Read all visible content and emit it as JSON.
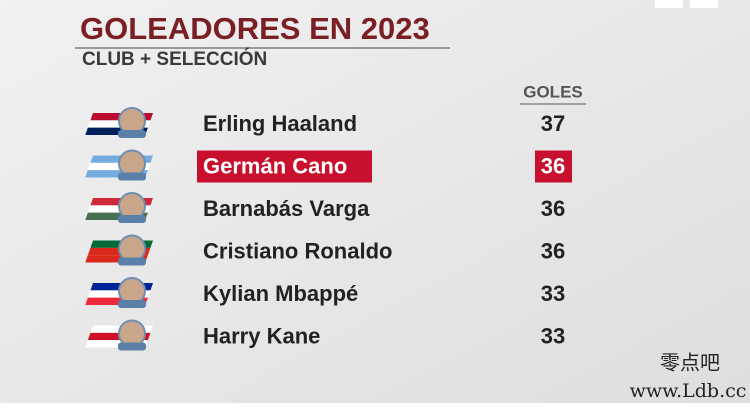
{
  "title": "GOLEADORES EN 2023",
  "subtitle": "CLUB + SELECCIÓN",
  "table": {
    "header": "GOLES",
    "rows": [
      {
        "name": "Erling Haaland",
        "goals": 37,
        "flag": [
          "#ba0c2f",
          "#ffffff",
          "#00205b"
        ]
      },
      {
        "name": "Germán Cano",
        "goals": 36,
        "flag": [
          "#74acdf",
          "#ffffff",
          "#74acdf"
        ],
        "highlighted": true
      },
      {
        "name": "Barnabás Varga",
        "goals": 36,
        "flag": [
          "#ce2939",
          "#ffffff",
          "#477050"
        ]
      },
      {
        "name": "Cristiano Ronaldo",
        "goals": 36,
        "flag": [
          "#046a38",
          "#da291c",
          "#da291c"
        ]
      },
      {
        "name": "Kylian Mbappé",
        "goals": 33,
        "flag": [
          "#002395",
          "#ffffff",
          "#ed2939"
        ]
      },
      {
        "name": "Harry Kane",
        "goals": 33,
        "flag": [
          "#ffffff",
          "#ce1124",
          "#ffffff"
        ]
      }
    ]
  },
  "watermark": {
    "line1": "零点吧",
    "line2": "www.Ldb.cc"
  }
}
